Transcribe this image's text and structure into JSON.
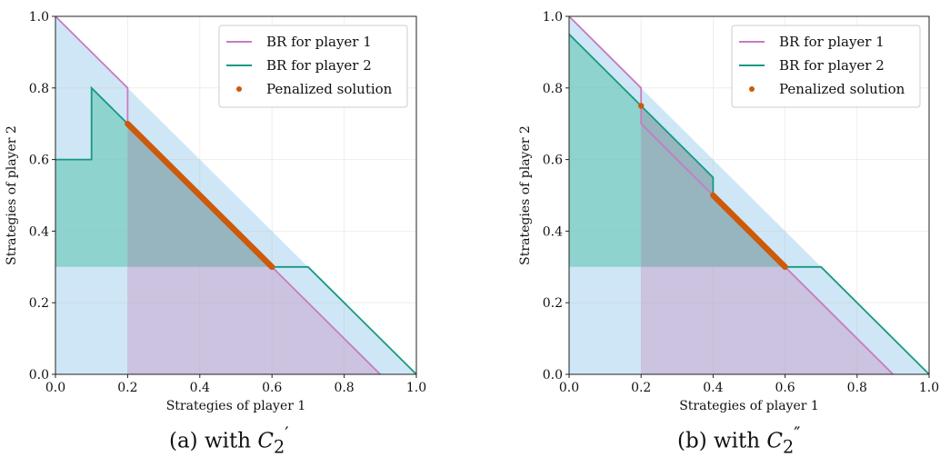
{
  "chart_data": [
    {
      "type": "line",
      "xlabel": "Strategies of player 1",
      "ylabel": "Strategies of player 2",
      "xlim": [
        0,
        1
      ],
      "ylim": [
        0,
        1
      ],
      "xticks": [
        "0.0",
        "0.2",
        "0.4",
        "0.6",
        "0.8",
        "1.0"
      ],
      "yticks": [
        "0.0",
        "0.2",
        "0.4",
        "0.6",
        "0.8",
        "1.0"
      ],
      "grid": true,
      "legend_position": "top-right",
      "caption": {
        "prefix": "(a) with ",
        "symbol": "C",
        "sub": "2",
        "prime": "′"
      },
      "regions": [
        {
          "name": "feasible",
          "color": "#cfe6f6",
          "points": [
            [
              0,
              0
            ],
            [
              1,
              0
            ],
            [
              0,
              1
            ]
          ]
        },
        {
          "name": "BR1-region",
          "color": "#cbc3e0",
          "points": [
            [
              0.2,
              0
            ],
            [
              0.9,
              0
            ],
            [
              0.6,
              0.3
            ],
            [
              0.2,
              0.3
            ]
          ]
        },
        {
          "name": "BR2-region",
          "color": "#8ed3cd",
          "points": [
            [
              0,
              0.3
            ],
            [
              0.6,
              0.3
            ],
            [
              0.2,
              0.7
            ],
            [
              0.1,
              0.8
            ],
            [
              0.1,
              0.6
            ],
            [
              0,
              0.6
            ]
          ]
        },
        {
          "name": "overlap",
          "color": "#97b5bf",
          "points": [
            [
              0.2,
              0.3
            ],
            [
              0.6,
              0.3
            ],
            [
              0.2,
              0.7
            ]
          ]
        }
      ],
      "series": [
        {
          "name": "BR for player 1",
          "color": "#c77cbf",
          "style": "line",
          "width": 1.8,
          "points": [
            [
              0,
              1
            ],
            [
              0.2,
              0.8
            ],
            [
              0.2,
              0.7
            ],
            [
              0.9,
              0
            ]
          ]
        },
        {
          "name": "BR for player 2",
          "color": "#159a80",
          "style": "line",
          "width": 1.8,
          "points": [
            [
              0,
              0.6
            ],
            [
              0.1,
              0.6
            ],
            [
              0.1,
              0.8
            ],
            [
              0.2,
              0.7
            ],
            [
              0.6,
              0.3
            ],
            [
              0.7,
              0.3
            ],
            [
              1,
              0
            ]
          ]
        },
        {
          "name": "Penalized solution",
          "color": "#cc5a0a",
          "style": "marker",
          "segments": [
            [
              [
                0.2,
                0.7
              ],
              [
                0.6,
                0.3
              ]
            ]
          ],
          "points": []
        }
      ]
    },
    {
      "type": "line",
      "xlabel": "Strategies of player 1",
      "ylabel": "Strategies of player 2",
      "xlim": [
        0,
        1
      ],
      "ylim": [
        0,
        1
      ],
      "xticks": [
        "0.0",
        "0.2",
        "0.4",
        "0.6",
        "0.8",
        "1.0"
      ],
      "yticks": [
        "0.0",
        "0.2",
        "0.4",
        "0.6",
        "0.8",
        "1.0"
      ],
      "grid": true,
      "legend_position": "top-right",
      "caption": {
        "prefix": "(b) with ",
        "symbol": "C",
        "sub": "2",
        "prime": "″"
      },
      "regions": [
        {
          "name": "feasible",
          "color": "#cfe6f6",
          "points": [
            [
              0,
              0
            ],
            [
              1,
              0
            ],
            [
              0,
              1
            ]
          ]
        },
        {
          "name": "BR1-region",
          "color": "#cbc3e0",
          "points": [
            [
              0.2,
              0
            ],
            [
              0.9,
              0
            ],
            [
              0.6,
              0.3
            ],
            [
              0.2,
              0.3
            ]
          ]
        },
        {
          "name": "BR2-region",
          "color": "#8ed3cd",
          "points": [
            [
              0,
              0.3
            ],
            [
              0.6,
              0.3
            ],
            [
              0.4,
              0.5
            ],
            [
              0.4,
              0.55
            ],
            [
              0,
              0.95
            ]
          ]
        },
        {
          "name": "overlap",
          "color": "#97b5bf",
          "points": [
            [
              0.2,
              0.3
            ],
            [
              0.6,
              0.3
            ],
            [
              0.4,
              0.5
            ],
            [
              0.4,
              0.55
            ],
            [
              0.2,
              0.75
            ]
          ]
        }
      ],
      "series": [
        {
          "name": "BR for player 1",
          "color": "#c77cbf",
          "style": "line",
          "width": 1.8,
          "points": [
            [
              0,
              1
            ],
            [
              0.2,
              0.8
            ],
            [
              0.2,
              0.7
            ],
            [
              0.9,
              0
            ]
          ]
        },
        {
          "name": "BR for player 2",
          "color": "#159a80",
          "style": "line",
          "width": 1.8,
          "points": [
            [
              0,
              0.95
            ],
            [
              0.4,
              0.55
            ],
            [
              0.4,
              0.5
            ],
            [
              0.6,
              0.3
            ],
            [
              0.7,
              0.3
            ],
            [
              1,
              0
            ]
          ]
        },
        {
          "name": "Penalized solution",
          "color": "#cc5a0a",
          "style": "marker",
          "segments": [
            [
              [
                0.4,
                0.5
              ],
              [
                0.6,
                0.3
              ]
            ]
          ],
          "points": [
            [
              0.2,
              0.75
            ]
          ]
        }
      ]
    }
  ]
}
